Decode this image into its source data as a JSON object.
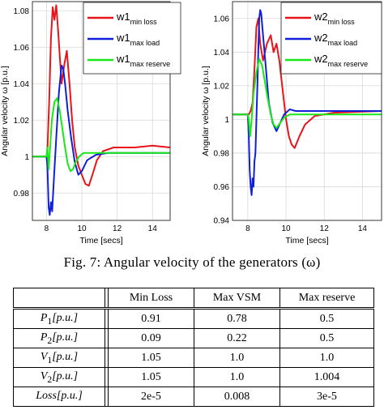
{
  "chart_data": [
    {
      "type": "line",
      "ylabel": "Angular velocity ω [p.u.]",
      "xlabel": "Time [secs]",
      "xlim": [
        7.2,
        15
      ],
      "ylim": [
        0.965,
        1.085
      ],
      "x_ticks": [
        "8",
        "10",
        "12",
        "14"
      ],
      "y_ticks": [
        "0.98",
        "1",
        "1.02",
        "1.04",
        "1.06",
        "1.08"
      ],
      "grid": true,
      "legend_position": "top-right",
      "series": [
        {
          "name": "w1",
          "sub": "min loss",
          "color": "#e8141c",
          "x": [
            7.2,
            8.0,
            8.05,
            8.15,
            8.25,
            8.35,
            8.45,
            8.55,
            8.65,
            8.75,
            8.85,
            9.0,
            9.15,
            9.3,
            9.45,
            9.6,
            9.8,
            10.0,
            10.2,
            10.4,
            10.6,
            10.85,
            11.2,
            11.8,
            13.0,
            14.0,
            15.0
          ],
          "y": [
            1.0,
            1.0,
            1.003,
            1.03,
            1.065,
            1.082,
            1.075,
            1.083,
            1.07,
            1.055,
            1.04,
            1.05,
            1.058,
            1.04,
            1.02,
            1.005,
            0.995,
            0.99,
            0.985,
            0.984,
            0.99,
            0.998,
            1.003,
            1.005,
            1.005,
            1.006,
            1.005
          ]
        },
        {
          "name": "w1",
          "sub": "max load",
          "color": "#1020d8",
          "x": [
            7.2,
            8.0,
            8.05,
            8.12,
            8.18,
            8.25,
            8.32,
            8.4,
            8.55,
            8.7,
            8.85,
            8.95,
            9.05,
            9.2,
            9.4,
            9.6,
            9.8,
            10.0,
            10.3,
            10.8,
            11.5,
            12.5,
            15.0
          ],
          "y": [
            1.0,
            1.0,
            0.995,
            0.972,
            0.968,
            0.975,
            0.97,
            0.985,
            1.01,
            1.035,
            1.05,
            1.048,
            1.04,
            1.025,
            1.01,
            0.997,
            0.99,
            0.992,
            0.998,
            1.001,
            1.002,
            1.002,
            1.002
          ]
        },
        {
          "name": "w1",
          "sub": "max reserve",
          "color": "#18e818",
          "x": [
            7.2,
            8.0,
            8.05,
            8.12,
            8.2,
            8.3,
            8.45,
            8.6,
            8.75,
            8.9,
            9.05,
            9.2,
            9.35,
            9.5,
            9.65,
            9.85,
            10.1,
            10.5,
            11.0,
            12.0,
            15.0
          ],
          "y": [
            1.0,
            1.0,
            1.005,
            0.993,
            1.005,
            1.02,
            1.03,
            1.032,
            1.025,
            1.015,
            1.005,
            0.996,
            0.992,
            0.993,
            0.997,
            1.0,
            1.002,
            1.002,
            1.002,
            1.002,
            1.002
          ]
        }
      ]
    },
    {
      "type": "line",
      "ylabel": "Angular velocity ω [p.u.]",
      "xlabel": "Time [secs]",
      "xlim": [
        7.2,
        15
      ],
      "ylim": [
        0.94,
        1.07
      ],
      "x_ticks": [
        "8",
        "10",
        "12",
        "14"
      ],
      "y_ticks": [
        "0.94",
        "0.96",
        "0.98",
        "1",
        "1.02",
        "1.04",
        "1.06"
      ],
      "grid": true,
      "legend_position": "top-right",
      "series": [
        {
          "name": "w2",
          "sub": "min loss",
          "color": "#e8141c",
          "x": [
            7.2,
            8.0,
            8.05,
            8.15,
            8.25,
            8.35,
            8.45,
            8.55,
            8.65,
            8.8,
            9.0,
            9.2,
            9.35,
            9.5,
            9.65,
            9.8,
            10.0,
            10.15,
            10.3,
            10.45,
            10.7,
            11.0,
            11.5,
            12.5,
            15.0
          ],
          "y": [
            1.003,
            1.003,
            1.003,
            1.005,
            1.01,
            1.03,
            1.055,
            1.06,
            1.045,
            1.035,
            1.045,
            1.05,
            1.04,
            1.045,
            1.035,
            1.02,
            1.0,
            0.99,
            0.985,
            0.983,
            0.99,
            0.997,
            1.002,
            1.004,
            1.005
          ]
        },
        {
          "name": "w2",
          "sub": "max load",
          "color": "#1020d8",
          "x": [
            7.2,
            8.0,
            8.05,
            8.1,
            8.15,
            8.2,
            8.25,
            8.3,
            8.35,
            8.4,
            8.45,
            8.5,
            8.55,
            8.6,
            8.65,
            8.7,
            8.8,
            8.95,
            9.1,
            9.3,
            9.5,
            9.7,
            9.9,
            10.2,
            10.5,
            11.0,
            12.0,
            15.0
          ],
          "y": [
            1.003,
            1.003,
            0.99,
            0.97,
            0.96,
            0.955,
            0.965,
            0.96,
            0.975,
            0.98,
            1.0,
            1.02,
            1.04,
            1.06,
            1.065,
            1.063,
            1.05,
            1.03,
            1.01,
            0.998,
            0.993,
            0.998,
            1.003,
            1.006,
            1.005,
            1.005,
            1.005,
            1.005
          ]
        },
        {
          "name": "w2",
          "sub": "max reserve",
          "color": "#18e818",
          "x": [
            7.2,
            8.0,
            8.05,
            8.12,
            8.2,
            8.3,
            8.45,
            8.6,
            8.75,
            8.9,
            9.05,
            9.2,
            9.35,
            9.5,
            9.7,
            9.9,
            10.2,
            10.6,
            11.2,
            12.0,
            15.0
          ],
          "y": [
            1.003,
            1.003,
            1.0,
            0.99,
            1.0,
            1.015,
            1.028,
            1.036,
            1.032,
            1.022,
            1.012,
            1.003,
            0.997,
            0.995,
            0.998,
            1.001,
            1.003,
            1.003,
            1.003,
            1.003,
            1.003
          ]
        }
      ]
    }
  ],
  "caption": "Fig. 7: Angular velocity of the generators (ω)",
  "table": {
    "columns": [
      "Min Loss",
      "Max VSM",
      "Max reserve"
    ],
    "rows": [
      {
        "label": "P",
        "sub": "1",
        "unit": "[p.u.]",
        "values": [
          "0.91",
          "0.78",
          "0.5"
        ]
      },
      {
        "label": "P",
        "sub": "2",
        "unit": "[p.u.]",
        "values": [
          "0.09",
          "0.22",
          "0.5"
        ]
      },
      {
        "label": "V",
        "sub": "1",
        "unit": "[p.u.]",
        "values": [
          "1.05",
          "1.0",
          "1.0"
        ]
      },
      {
        "label": "V",
        "sub": "2",
        "unit": "[p.u.]",
        "values": [
          "1.05",
          "1.0",
          "1.004"
        ]
      },
      {
        "label": "Loss",
        "sub": "",
        "unit": "[p.u.]",
        "values": [
          "2e-5",
          "0.008",
          "3e-5"
        ]
      }
    ]
  }
}
